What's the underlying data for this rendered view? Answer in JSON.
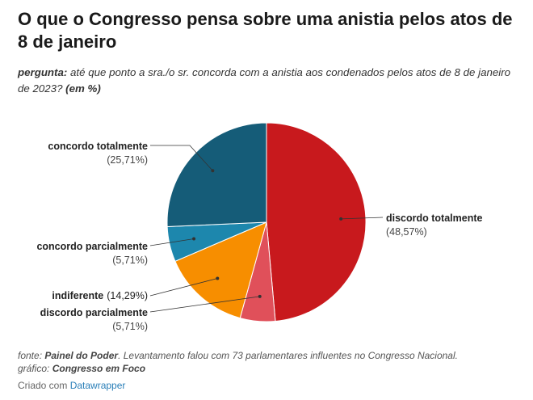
{
  "title": "O que o Congresso pensa sobre uma anistia pelos atos de 8 de janeiro",
  "subtitle": {
    "lead": "pergunta:",
    "text": "até que ponto a sra./o sr. concorda com a anistia aos condenados pelos atos de 8 de janeiro de 2023?",
    "unit": "(em %)"
  },
  "chart_data": {
    "type": "pie",
    "slices": [
      {
        "label": "discordo totalmente",
        "value_text": "(48,57%)",
        "value": 48.57,
        "color": "#c8191d"
      },
      {
        "label": "discordo parcialmente",
        "value_text": "(5,71%)",
        "value": 5.71,
        "color": "#e0505a"
      },
      {
        "label": "indiferente",
        "value_text": "(14,29%)",
        "value": 14.29,
        "color": "#f78e00"
      },
      {
        "label": "concordo parcialmente",
        "value_text": "(5,71%)",
        "value": 5.71,
        "color": "#1d87ad"
      },
      {
        "label": "concordo totalmente",
        "value_text": "(25,71%)",
        "value": 25.71,
        "color": "#155c78"
      }
    ]
  },
  "notes": {
    "source_lead": "fonte:",
    "source_name": "Painel do Poder",
    "source_text": ". Levantamento falou com 73 parlamentares influentes no Congresso Nacional.",
    "graphic_lead": "gráfico:",
    "graphic_name": "Congresso em Foco"
  },
  "credit": {
    "text": "Criado com",
    "link": "Datawrapper"
  }
}
